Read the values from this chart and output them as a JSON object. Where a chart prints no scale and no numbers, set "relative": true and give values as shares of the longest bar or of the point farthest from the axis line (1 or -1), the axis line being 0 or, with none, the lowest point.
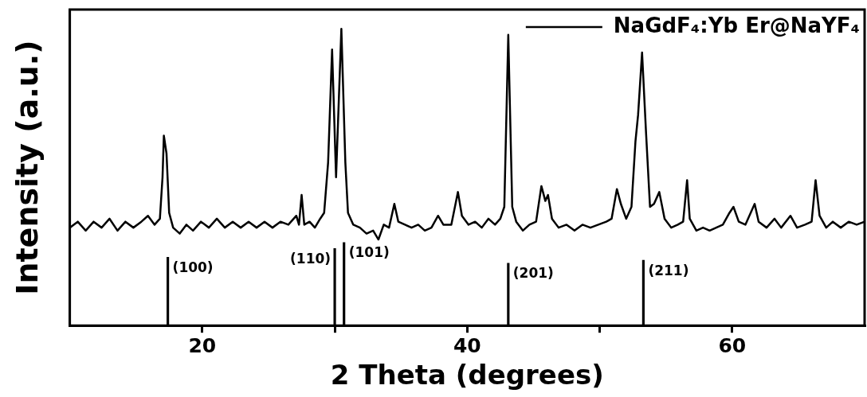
{
  "chart_data": {
    "type": "line",
    "xlabel": "2 Theta (degrees)",
    "ylabel": "Intensity (a.u.)",
    "relative": true,
    "xlim": [
      10,
      70
    ],
    "xticks": [
      20,
      {
        "value": 30,
        "label": null
      },
      40,
      {
        "value": 50,
        "label": null
      },
      60
    ],
    "legend": "top right",
    "grid": false,
    "marker": "none",
    "line_style": "solid",
    "series": [
      {
        "name": "NaGdF₄:Yb Er@NaYF₄",
        "color": "#000000",
        "x": [
          10.0,
          10.6,
          11.2,
          11.8,
          12.4,
          13.0,
          13.6,
          14.2,
          14.8,
          15.4,
          15.9,
          16.4,
          16.8,
          17.0,
          17.1,
          17.3,
          17.5,
          17.8,
          18.3,
          18.8,
          19.3,
          19.9,
          20.5,
          21.1,
          21.7,
          22.3,
          22.9,
          23.5,
          24.1,
          24.7,
          25.3,
          25.9,
          26.5,
          27.1,
          27.3,
          27.5,
          27.7,
          28.1,
          28.5,
          28.9,
          29.2,
          29.5,
          29.8,
          30.1,
          30.5,
          30.8,
          31.0,
          31.4,
          31.9,
          32.4,
          32.9,
          33.3,
          33.7,
          34.1,
          34.5,
          34.8,
          35.3,
          35.8,
          36.3,
          36.8,
          37.3,
          37.8,
          38.2,
          38.8,
          39.3,
          39.6,
          40.1,
          40.6,
          41.1,
          41.6,
          42.1,
          42.5,
          42.8,
          43.1,
          43.4,
          43.7,
          44.2,
          44.7,
          45.2,
          45.6,
          45.9,
          46.1,
          46.4,
          46.9,
          47.5,
          48.1,
          48.7,
          49.3,
          49.9,
          50.5,
          50.9,
          51.3,
          51.6,
          52.0,
          52.4,
          52.7,
          52.9,
          53.2,
          53.5,
          53.8,
          54.1,
          54.5,
          54.9,
          55.4,
          55.9,
          56.3,
          56.6,
          56.8,
          57.3,
          57.8,
          58.3,
          58.8,
          59.3,
          59.8,
          60.1,
          60.5,
          61.0,
          61.7,
          62.0,
          62.6,
          63.2,
          63.7,
          64.4,
          64.9,
          65.5,
          66.0,
          66.3,
          66.6,
          67.1,
          67.6,
          68.2,
          68.8,
          69.4,
          70.0
        ],
        "values": [
          0.33,
          0.35,
          0.32,
          0.35,
          0.33,
          0.36,
          0.32,
          0.35,
          0.33,
          0.35,
          0.37,
          0.34,
          0.36,
          0.5,
          0.64,
          0.58,
          0.38,
          0.33,
          0.31,
          0.34,
          0.32,
          0.35,
          0.33,
          0.36,
          0.33,
          0.35,
          0.33,
          0.35,
          0.33,
          0.35,
          0.33,
          0.35,
          0.34,
          0.37,
          0.34,
          0.44,
          0.34,
          0.35,
          0.33,
          0.36,
          0.38,
          0.55,
          0.93,
          0.5,
          1.0,
          0.55,
          0.38,
          0.34,
          0.33,
          0.31,
          0.32,
          0.29,
          0.34,
          0.33,
          0.41,
          0.35,
          0.34,
          0.33,
          0.34,
          0.32,
          0.33,
          0.37,
          0.34,
          0.34,
          0.45,
          0.37,
          0.34,
          0.35,
          0.33,
          0.36,
          0.34,
          0.36,
          0.4,
          0.98,
          0.4,
          0.35,
          0.32,
          0.34,
          0.35,
          0.47,
          0.42,
          0.44,
          0.36,
          0.33,
          0.34,
          0.32,
          0.34,
          0.33,
          0.34,
          0.35,
          0.36,
          0.46,
          0.41,
          0.36,
          0.4,
          0.62,
          0.71,
          0.92,
          0.65,
          0.4,
          0.41,
          0.45,
          0.36,
          0.33,
          0.34,
          0.35,
          0.49,
          0.36,
          0.32,
          0.33,
          0.32,
          0.33,
          0.34,
          0.38,
          0.4,
          0.35,
          0.34,
          0.41,
          0.35,
          0.33,
          0.36,
          0.33,
          0.37,
          0.33,
          0.34,
          0.35,
          0.49,
          0.37,
          0.33,
          0.35,
          0.33,
          0.35,
          0.34,
          0.35
        ]
      },
      {
        "color": "#000000",
        "type": "bar",
        "x": [
          17.4,
          30.0,
          30.7,
          43.1,
          53.3
        ],
        "values": [
          0.23,
          0.26,
          0.28,
          0.21,
          0.22
        ]
      }
    ],
    "annotations": [
      {
        "text": "(100)",
        "x": 17.4,
        "y": 0.23
      },
      {
        "text": "(110)",
        "x": 30.0,
        "y": 0.26
      },
      {
        "text": "(101)",
        "x": 30.7,
        "y": 0.28
      },
      {
        "text": "(201)",
        "x": 43.1,
        "y": 0.21
      },
      {
        "text": "(211)",
        "x": 53.3,
        "y": 0.22
      }
    ]
  }
}
